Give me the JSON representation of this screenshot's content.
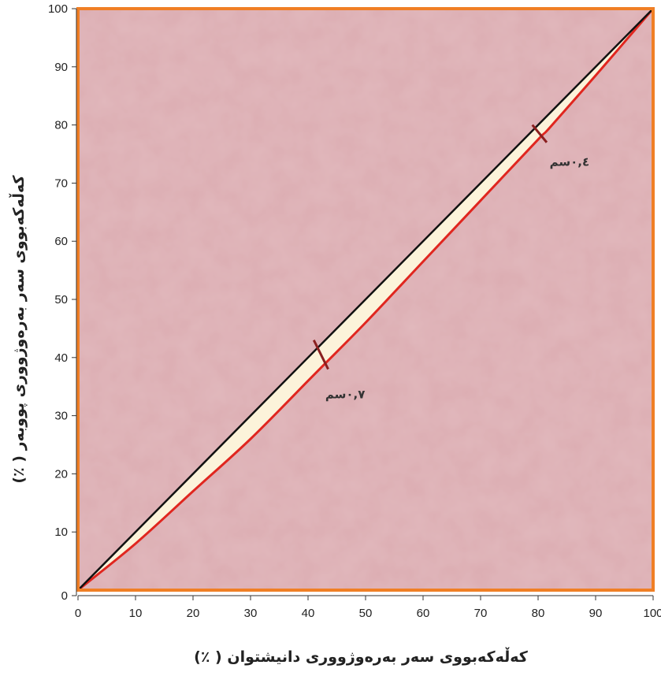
{
  "chart_data": {
    "type": "line",
    "title": "",
    "xlabel": "کەڵەکەبووی سەر بەرەوژووری دانیشتوان ( ٪)",
    "ylabel": "کەڵەکەبووی سەر بەرەوژووری پووبەر ( ٪)",
    "xlim": [
      0,
      100
    ],
    "ylim": [
      0,
      100
    ],
    "x_ticks": [
      0,
      10,
      20,
      30,
      40,
      50,
      60,
      70,
      80,
      90,
      100
    ],
    "y_ticks": [
      0,
      10,
      20,
      30,
      40,
      50,
      60,
      70,
      80,
      90,
      100
    ],
    "grid": false,
    "legend": "none",
    "series": [
      {
        "role": "equality-line",
        "color": "#111111",
        "x": [
          0,
          100
        ],
        "y": [
          0,
          100
        ]
      },
      {
        "role": "distribution-curve",
        "color": "#e0261f",
        "x": [
          0,
          10,
          20,
          30,
          40,
          43,
          50,
          60,
          70,
          80,
          82,
          90,
          100
        ],
        "y": [
          0,
          8,
          17,
          26,
          36,
          39,
          46,
          56.5,
          67,
          77.5,
          79.5,
          88.5,
          100
        ]
      }
    ],
    "annotations": [
      {
        "text": "٠,٧سم",
        "x": 43,
        "y": 33,
        "from": [
          41,
          43
        ],
        "to": [
          43.5,
          38
        ]
      },
      {
        "text": "٠,٤سم",
        "x": 82,
        "y": 73,
        "from": [
          79,
          80
        ],
        "to": [
          81.5,
          77
        ]
      }
    ],
    "colors": {
      "plot_background": "#dcadb2",
      "plot_border": "#f07f25",
      "gap_fill": "#fcf3da",
      "marker_line": "#8a1f1f"
    }
  }
}
